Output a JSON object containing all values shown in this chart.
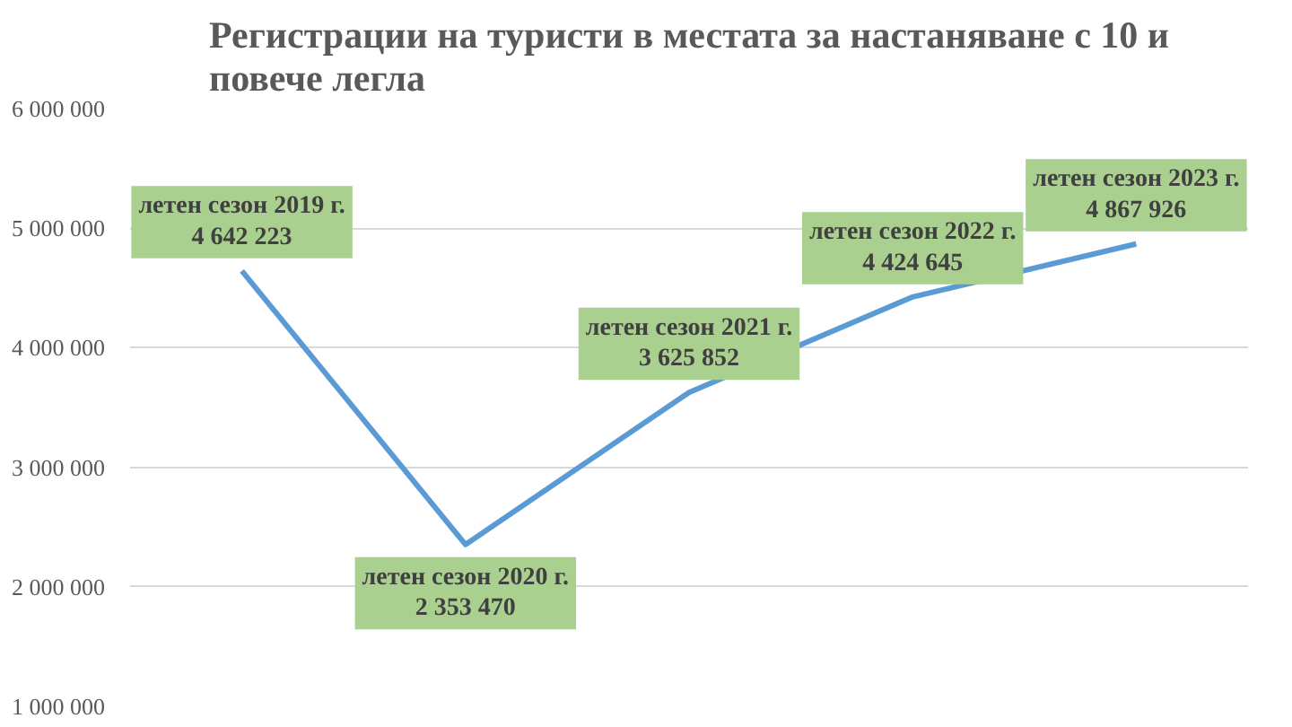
{
  "chart_data": {
    "type": "line",
    "title": "Регистрации на туристи в местата за настаняване с 10 и повече легла",
    "categories": [
      null,
      null,
      null,
      null,
      null
    ],
    "values": [
      4642223,
      2353470,
      3625852,
      4424645,
      4867926
    ],
    "color": "#5b9bd5",
    "value_labels": [
      "летен сезон 2019 г.\n4 642 223",
      "летен сезон 2020 г.\n2 353 470",
      "летен сезон 2021 г.\n3 625 852",
      "летен сезон 2022 г.\n4 424 645",
      "летен сезон 2023 г.\n4 867 926"
    ],
    "ylim": [
      1000000,
      6000000
    ],
    "yticks": [
      {
        "value": 1000000,
        "label": "1 000 000"
      },
      {
        "value": 2000000,
        "label": "2 000 000"
      },
      {
        "value": 3000000,
        "label": "3 000 000"
      },
      {
        "value": 4000000,
        "label": "4 000 000"
      },
      {
        "value": 5000000,
        "label": "5 000 000"
      },
      {
        "value": 6000000,
        "label": "6 000 000"
      }
    ],
    "grid": "y",
    "tick_labels": "y"
  }
}
